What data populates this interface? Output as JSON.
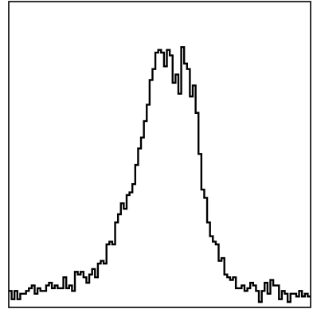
{
  "chart_data": {
    "type": "line",
    "drawstyle": "steps",
    "title": "",
    "xlabel": "",
    "ylabel": "",
    "xlim": [
      0,
      100
    ],
    "ylim": [
      0,
      100
    ],
    "axis_ticks": "none",
    "grid": false,
    "legend": "none",
    "line_color": "#000000",
    "series": [
      {
        "values": [
          6,
          3,
          6,
          3,
          5,
          5,
          6,
          7,
          8,
          5,
          7,
          6,
          6,
          8,
          9,
          7,
          8,
          7,
          7,
          11,
          7,
          8,
          6,
          13,
          12,
          13,
          11,
          9,
          12,
          14,
          11,
          16,
          17,
          16,
          23,
          24,
          23,
          31,
          34,
          38,
          36,
          41,
          42,
          45,
          52,
          58,
          62,
          68,
          74,
          83,
          87,
          93,
          94,
          93,
          88,
          94,
          92,
          82,
          85,
          78,
          95,
          89,
          87,
          77,
          81,
          71,
          56,
          43,
          40,
          31,
          26,
          24,
          23,
          17,
          18,
          12,
          11,
          10,
          11,
          7,
          7,
          8,
          6,
          7,
          9,
          8,
          6,
          2,
          6,
          9,
          5,
          10,
          8,
          8,
          3,
          6,
          5,
          2,
          5,
          5,
          4,
          6,
          4,
          5,
          4
        ]
      }
    ]
  }
}
